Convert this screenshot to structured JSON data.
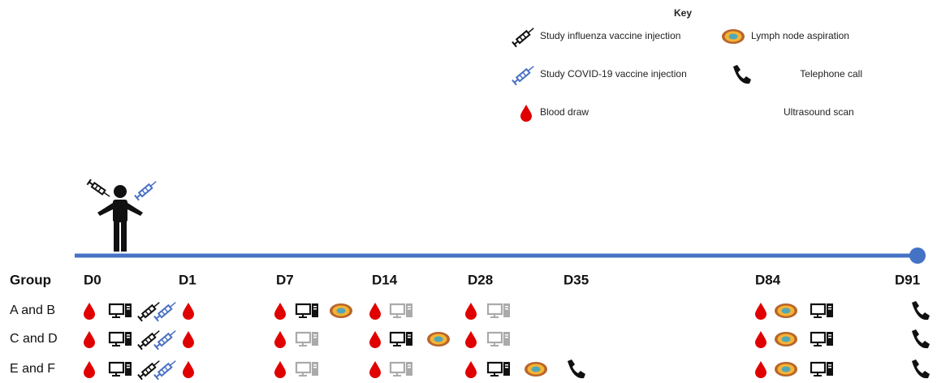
{
  "key": {
    "title": "Key",
    "items": [
      "Study influenza vaccine injection",
      "Study COVID-19 vaccine injection",
      "Blood draw",
      "Lymph node aspiration",
      "Telephone call",
      "Ultrasound scan"
    ]
  },
  "timeline": {
    "header": "Group",
    "days": [
      "D0",
      "D1",
      "D7",
      "D14",
      "D28",
      "D35",
      "D84",
      "D91"
    ]
  },
  "groups": [
    "A and B",
    "C and D",
    "E and F"
  ]
}
